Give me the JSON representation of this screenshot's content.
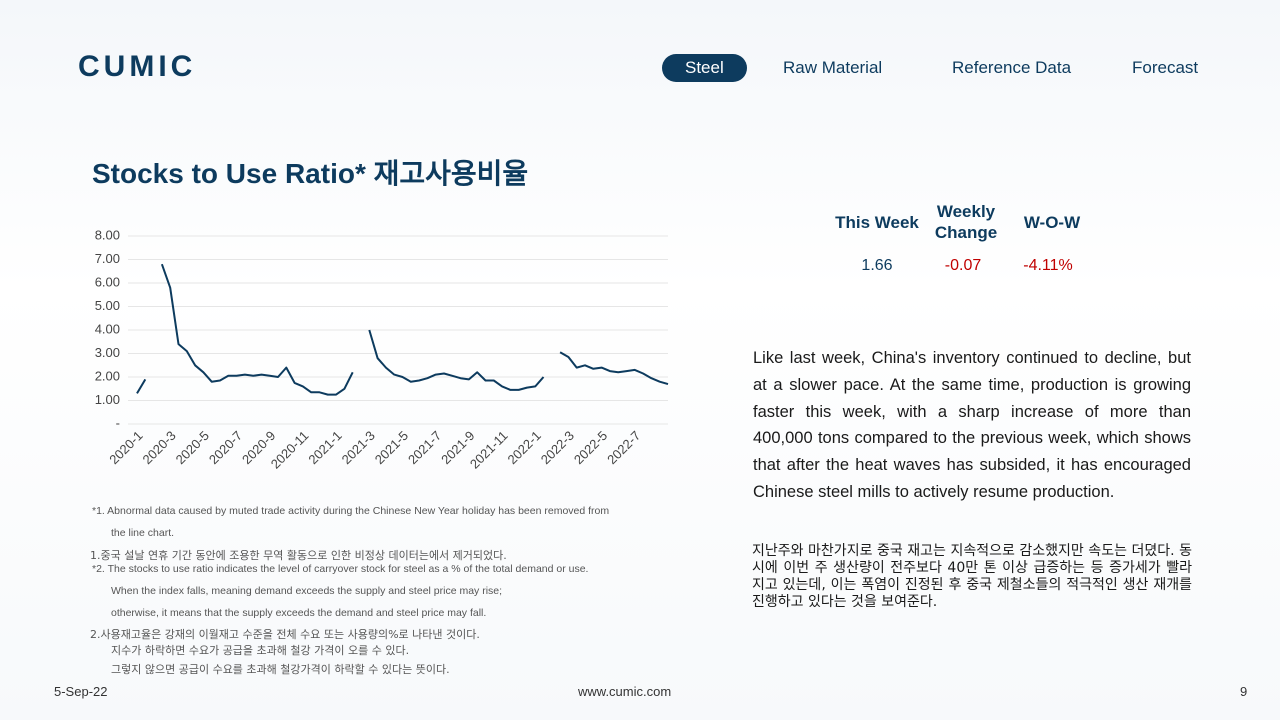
{
  "logo": "CUMIC",
  "nav": [
    "Steel",
    "Raw Material",
    "Reference Data",
    "Forecast"
  ],
  "title": "Stocks to Use Ratio* 재고사용비율",
  "table": {
    "headers": [
      "This Week",
      "Weekly\nChange",
      "W-O-W"
    ],
    "values": [
      "1.66",
      "-0.07",
      "-4.11%"
    ]
  },
  "chart_data": {
    "type": "line",
    "categories": [
      "2020-1",
      null,
      null,
      null,
      "2020-3",
      null,
      null,
      null,
      "2020-5",
      null,
      null,
      null,
      "2020-7",
      null,
      null,
      null,
      "2020-9",
      null,
      null,
      null,
      "2020-11",
      null,
      null,
      null,
      "2021-1",
      null,
      null,
      null,
      "2021-3",
      null,
      null,
      null,
      "2021-5",
      null,
      null,
      null,
      "2021-7",
      null,
      null,
      null,
      "2021-9",
      null,
      null,
      null,
      "2021-11",
      null,
      null,
      null,
      "2022-1",
      null,
      null,
      null,
      "2022-3",
      null,
      null,
      null,
      "2022-5",
      null,
      null,
      null,
      "2022-7",
      null,
      null,
      null,
      null
    ],
    "series": [
      {
        "name": "Stocks to Use Ratio",
        "color": "#0d3b5e",
        "values": [
          1.3,
          1.9,
          null,
          6.8,
          5.8,
          3.4,
          3.1,
          2.5,
          2.2,
          1.8,
          1.85,
          2.05,
          2.05,
          2.1,
          2.05,
          2.1,
          2.05,
          2.0,
          2.4,
          1.75,
          1.6,
          1.35,
          1.35,
          1.25,
          1.25,
          1.5,
          2.2,
          null,
          4.0,
          2.8,
          2.4,
          2.1,
          2.0,
          1.8,
          1.85,
          1.95,
          2.1,
          2.15,
          2.05,
          1.95,
          1.9,
          2.2,
          1.85,
          1.85,
          1.6,
          1.45,
          1.45,
          1.55,
          1.6,
          2.0,
          null,
          3.05,
          2.85,
          2.4,
          2.5,
          2.35,
          2.4,
          2.25,
          2.2,
          2.25,
          2.3,
          2.15,
          1.95,
          1.8,
          1.7
        ]
      }
    ],
    "ylim": [
      0,
      8
    ],
    "yticks": [
      {
        "value": 0,
        "label": "-"
      },
      {
        "value": 1,
        "label": "1.00"
      },
      {
        "value": 2,
        "label": "2.00"
      },
      {
        "value": 3,
        "label": "3.00"
      },
      {
        "value": 4,
        "label": "4.00"
      },
      {
        "value": 5,
        "label": "5.00"
      },
      {
        "value": 6,
        "label": "6.00"
      },
      {
        "value": 7,
        "label": "7.00"
      },
      {
        "value": 8,
        "label": "8.00"
      }
    ],
    "grid": true
  },
  "notes": [
    "*1. Abnormal data caused by muted trade activity during the Chinese New Year holiday has been removed from",
    "the line chart.",
    "1.중국 설날 연휴 기간 동안에 조용한 무역 활동으로 인한 비정상 데이터는에서 제거되었다.",
    "*2. The stocks to use ratio indicates the level of carryover stock for steel as a % of the total demand or use.",
    "When the index falls, meaning demand exceeds the supply and steel price may rise;",
    "otherwise, it means that the supply exceeds the demand and steel price may fall.",
    "2.사용재고율은 강재의 이월재고 수준을 전체 수요 또는 사용량의%로 나타낸 것이다.",
    "지수가 하락하면 수요가 공급을 초과해 철강 가격이 오를 수 있다.",
    "그렇지 않으면 공급이 수요를 초과해 철강가격이 하락할 수 있다는 뜻이다."
  ],
  "body_en": "Like last week, China's inventory continued to decline, but at a slower pace. At the same time, production is growing faster this week, with a sharp increase of more than 400,000 tons compared to the previous week, which shows that after the heat waves has subsided, it has encouraged Chinese steel mills to actively resume production.",
  "body_ko": "지난주와 마찬가지로 중국 재고는 지속적으로 감소했지만 속도는 더뎠다. 동시에 이번 주 생산량이 전주보다 40만 톤 이상 급증하는 등 증가세가 빨라지고 있는데, 이는 폭염이 진정된 후 중국 제철소들의 적극적인 생산 재개를 진행하고 있다는 것을 보여준다.",
  "footer": {
    "date": "5-Sep-22",
    "url": "www.cumic.com",
    "page": "9"
  }
}
